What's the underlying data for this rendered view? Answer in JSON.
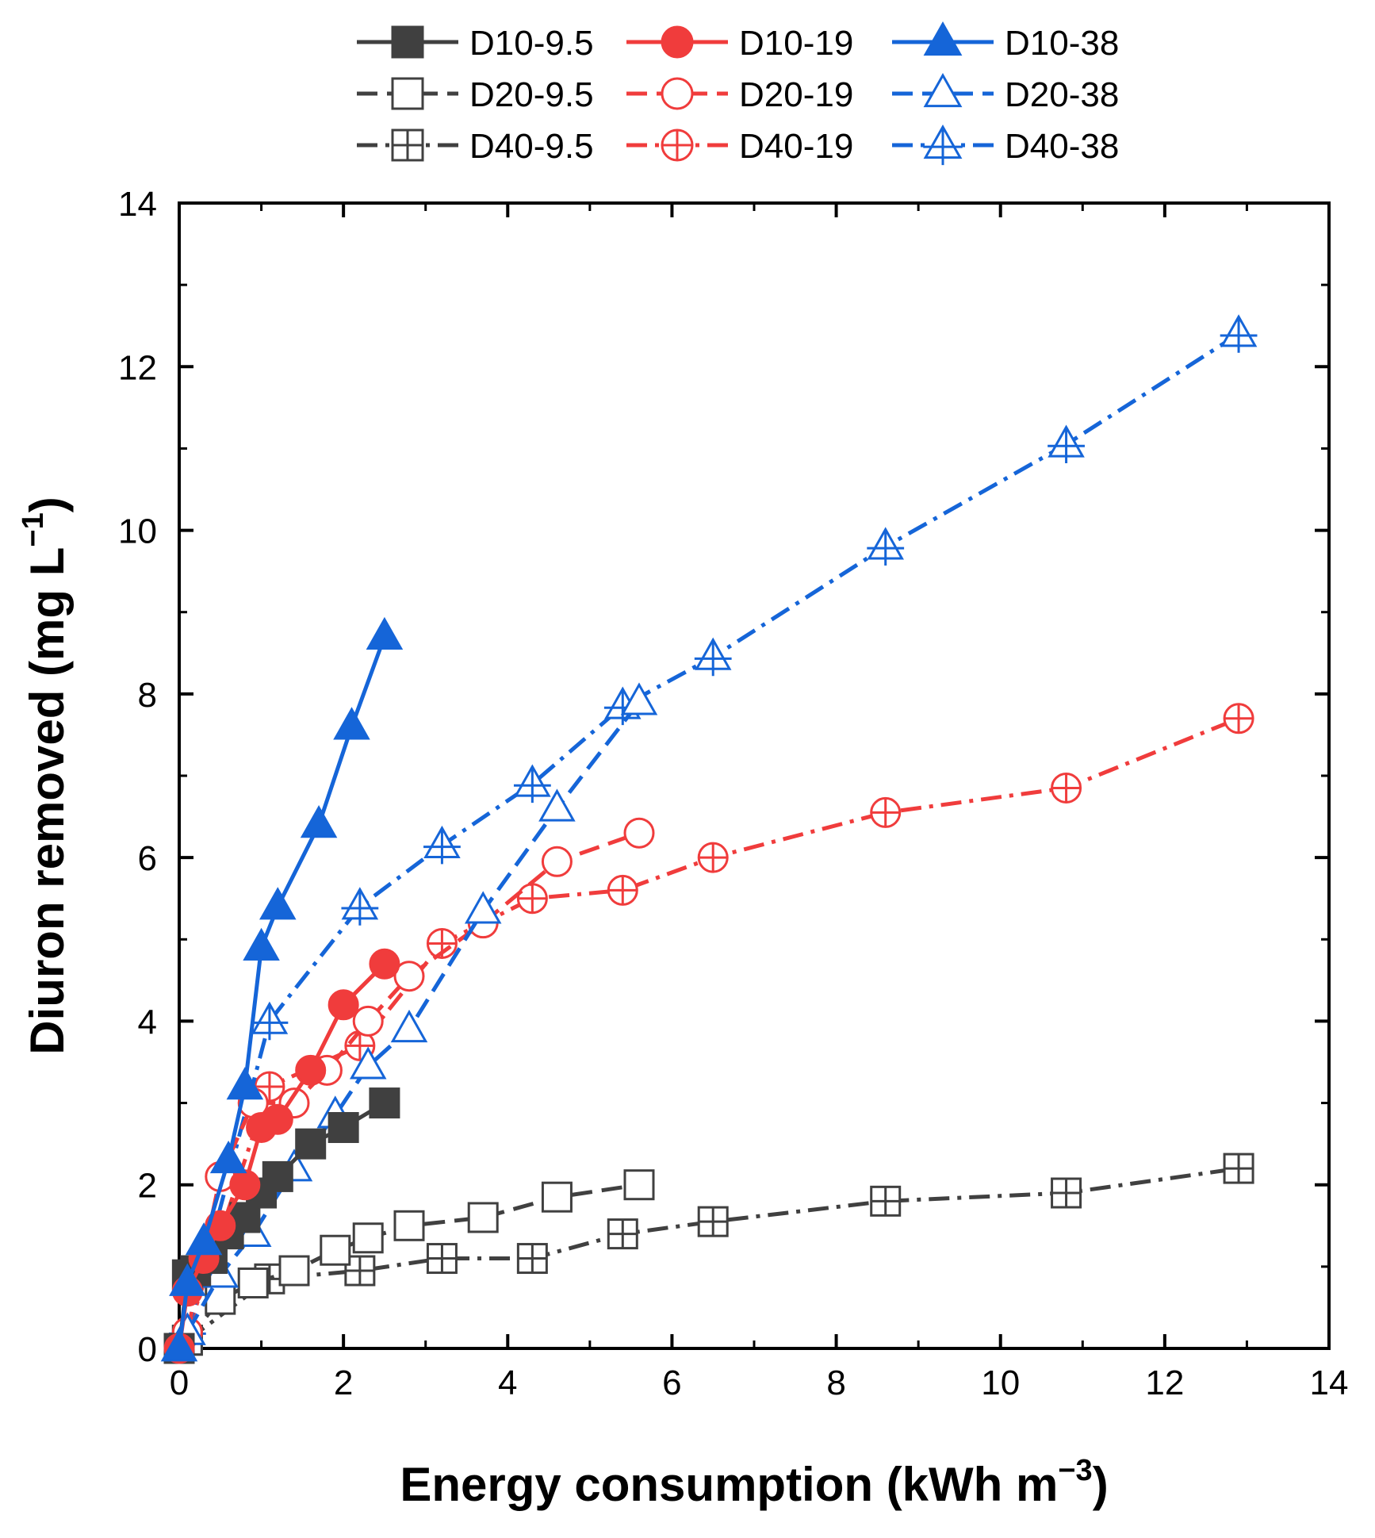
{
  "chart_data": {
    "type": "line",
    "xlabel": "Energy consumption (kWh m",
    "xlabel_sup": "−3",
    "xlabel_end": ")",
    "ylabel": "Diuron removed (mg L",
    "ylabel_sup": "−1",
    "ylabel_end": ")",
    "xlim": [
      0,
      14
    ],
    "ylim": [
      0,
      14
    ],
    "xticks": [
      0,
      2,
      4,
      6,
      8,
      10,
      12,
      14
    ],
    "yticks": [
      0,
      2,
      4,
      6,
      8,
      10,
      12,
      14
    ],
    "grid": false,
    "legend_position": "top",
    "series": [
      {
        "name": "D10-9.5",
        "color": "#404040",
        "marker": "square-filled",
        "dash": "solid",
        "x": [
          0,
          0.1,
          0.2,
          0.4,
          0.6,
          0.8,
          1.0,
          1.2,
          1.6,
          2.0,
          2.5
        ],
        "y": [
          0,
          0.9,
          0.95,
          1.1,
          1.4,
          1.6,
          1.9,
          2.1,
          2.5,
          2.7,
          3.0
        ]
      },
      {
        "name": "D10-19",
        "color": "#f03c3c",
        "marker": "circle-filled",
        "dash": "solid",
        "x": [
          0,
          0.1,
          0.3,
          0.5,
          0.8,
          1.0,
          1.2,
          1.6,
          2.0,
          2.5
        ],
        "y": [
          0,
          0.7,
          1.1,
          1.5,
          2.0,
          2.7,
          2.8,
          3.4,
          4.2,
          4.7
        ]
      },
      {
        "name": "D10-38",
        "color": "#1565d8",
        "marker": "triangle-filled",
        "dash": "solid",
        "x": [
          0,
          0.1,
          0.3,
          0.6,
          0.8,
          1.0,
          1.2,
          1.7,
          2.1,
          2.5
        ],
        "y": [
          0,
          0.8,
          1.3,
          2.3,
          3.2,
          4.9,
          5.4,
          6.4,
          7.6,
          8.7
        ]
      },
      {
        "name": "D20-9.5",
        "color": "#404040",
        "marker": "square-open",
        "dash": "dashed",
        "x": [
          0.1,
          0.5,
          0.9,
          1.4,
          1.9,
          2.3,
          2.8,
          3.7,
          4.6,
          5.6
        ],
        "y": [
          0.1,
          0.6,
          0.8,
          0.95,
          1.2,
          1.35,
          1.5,
          1.6,
          1.85,
          2.0
        ]
      },
      {
        "name": "D20-19",
        "color": "#f03c3c",
        "marker": "circle-open",
        "dash": "dashed",
        "x": [
          0.1,
          0.5,
          0.9,
          1.4,
          1.8,
          2.3,
          2.8,
          3.7,
          4.6,
          5.6
        ],
        "y": [
          0.2,
          2.1,
          3.0,
          3.0,
          3.4,
          4.0,
          4.55,
          5.2,
          5.95,
          6.3
        ]
      },
      {
        "name": "D20-38",
        "color": "#1565d8",
        "marker": "triangle-open",
        "dash": "dashed",
        "x": [
          0.1,
          0.5,
          0.9,
          1.4,
          1.9,
          2.3,
          2.8,
          3.7,
          4.6,
          5.6
        ],
        "y": [
          0.2,
          0.9,
          1.4,
          2.2,
          2.85,
          3.45,
          3.9,
          5.35,
          6.6,
          7.9
        ]
      },
      {
        "name": "D40-9.5",
        "color": "#404040",
        "marker": "square-cross",
        "dash": "dashdot",
        "x": [
          0.1,
          1.1,
          2.2,
          3.2,
          4.3,
          5.4,
          6.5,
          8.6,
          10.8,
          12.9
        ],
        "y": [
          0.1,
          0.85,
          0.95,
          1.1,
          1.1,
          1.4,
          1.55,
          1.8,
          1.9,
          2.2
        ]
      },
      {
        "name": "D40-19",
        "color": "#f03c3c",
        "marker": "circle-cross",
        "dash": "dashdot",
        "x": [
          0.1,
          1.1,
          2.2,
          3.2,
          4.3,
          5.4,
          6.5,
          8.6,
          10.8,
          12.9
        ],
        "y": [
          0.2,
          3.2,
          3.7,
          4.95,
          5.5,
          5.6,
          6.0,
          6.55,
          6.85,
          7.7
        ]
      },
      {
        "name": "D40-38",
        "color": "#1565d8",
        "marker": "triangle-cross",
        "dash": "dashdot",
        "x": [
          0.1,
          1.1,
          2.2,
          3.2,
          4.3,
          5.4,
          6.5,
          8.6,
          10.8,
          12.9
        ],
        "y": [
          0.2,
          4.0,
          5.4,
          6.15,
          6.9,
          7.85,
          8.45,
          9.8,
          11.05,
          12.4
        ]
      }
    ]
  }
}
